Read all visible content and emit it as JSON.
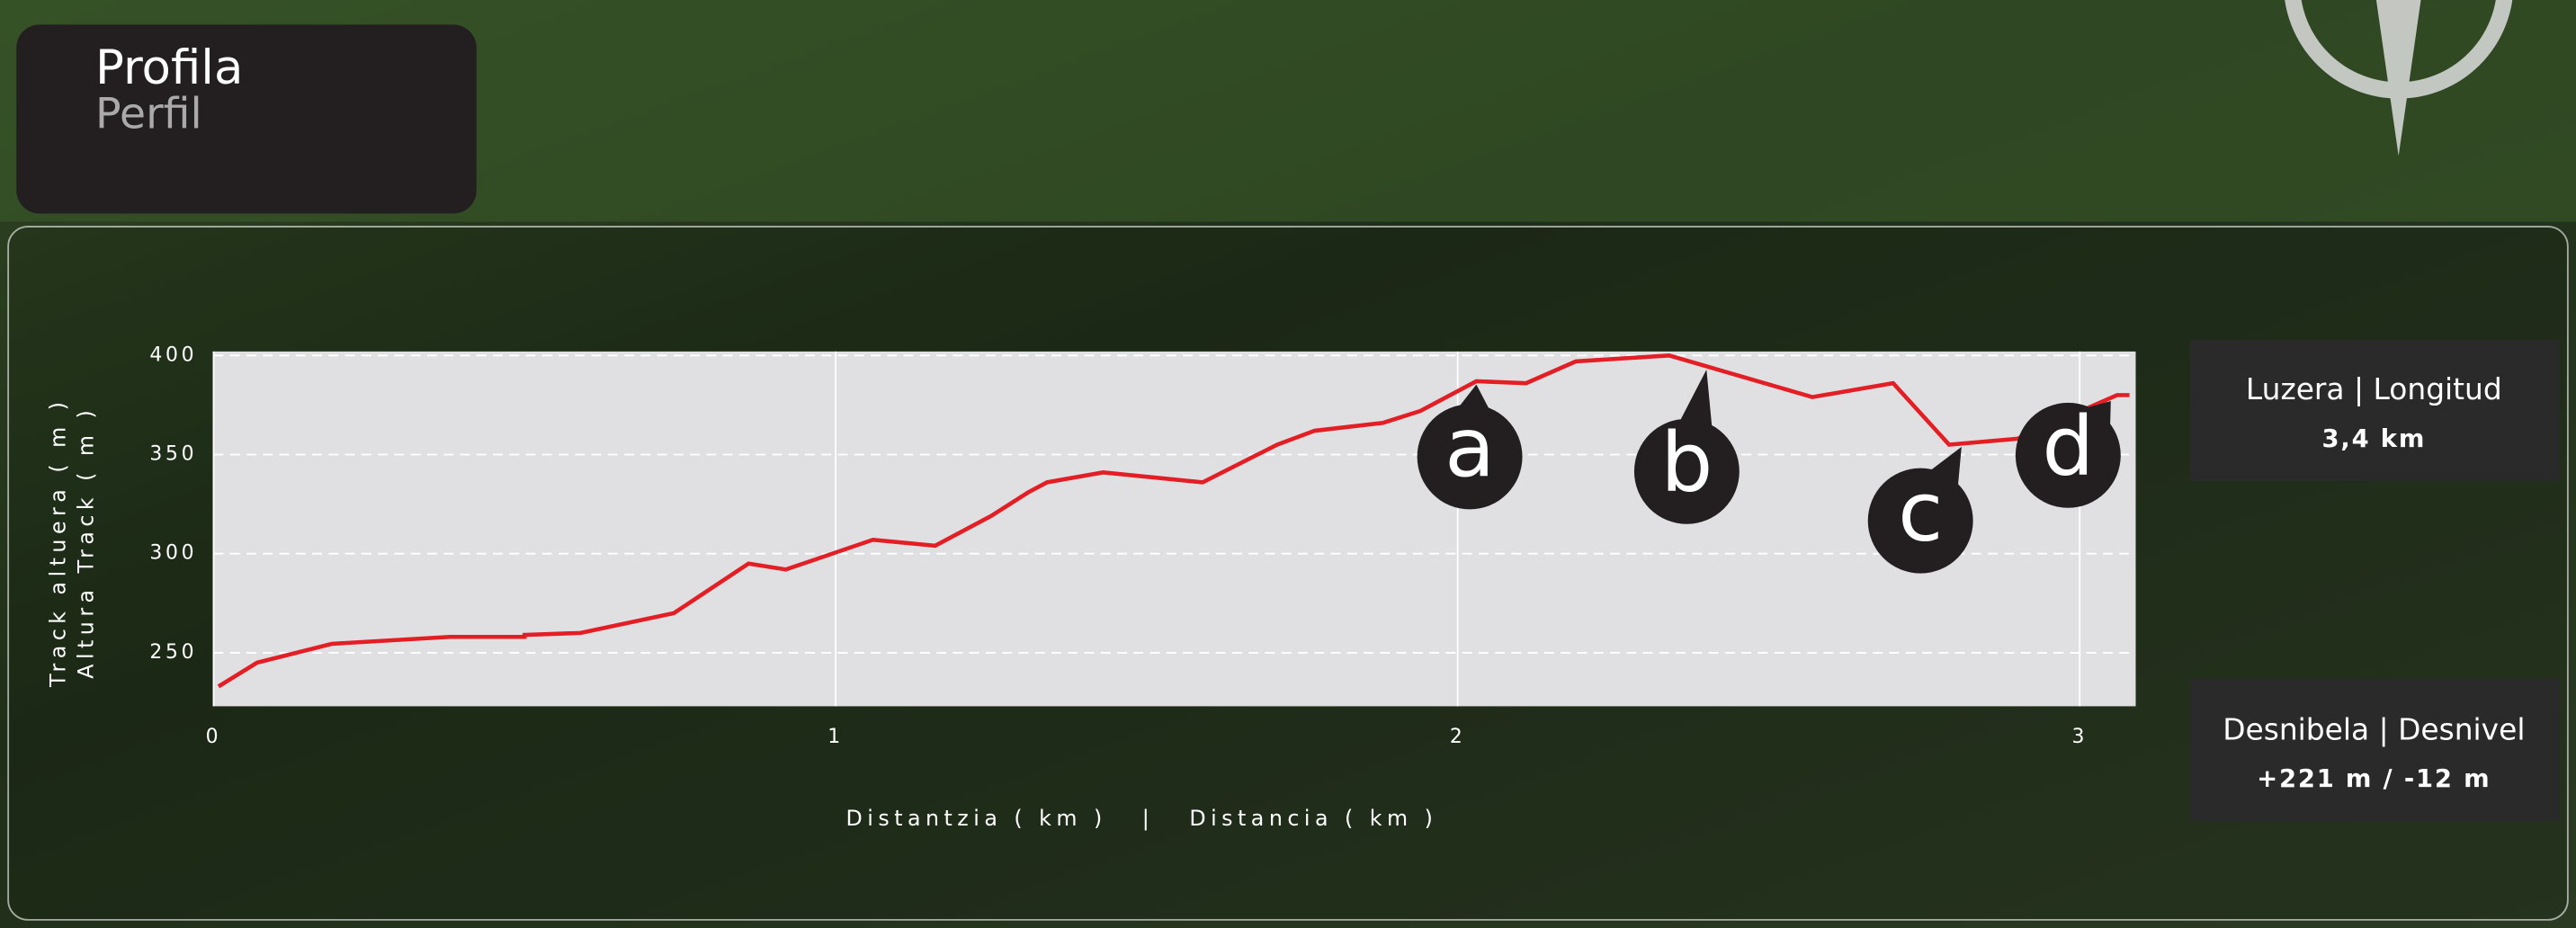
{
  "header": {
    "title": "Profila",
    "subtitle": "Perfil"
  },
  "chart_data": {
    "type": "line",
    "ylabel": [
      "Track altuera ( m )",
      "Altura Track ( m )"
    ],
    "xlabel": "Distantzia ( km )   |   Distancia ( km )",
    "xlim": [
      0,
      3.09
    ],
    "ylim": [
      223,
      402
    ],
    "xticks": [
      0,
      1,
      2,
      3
    ],
    "yticks": [
      250,
      300,
      350,
      400
    ],
    "grid": true,
    "series": [
      {
        "name": "Track",
        "color": "#e31e24",
        "x": [
          0.008,
          0.07,
          0.19,
          0.38,
          0.5,
          0.5,
          0.59,
          0.74,
          0.86,
          0.92,
          1.06,
          1.16,
          1.25,
          1.31,
          1.34,
          1.43,
          1.59,
          1.71,
          1.77,
          1.88,
          1.94,
          2.03,
          2.11,
          2.19,
          2.34,
          2.57,
          2.7,
          2.79,
          2.9,
          3.06,
          3.08
        ],
        "values": [
          233,
          245,
          254.5,
          258,
          258,
          259,
          260,
          270,
          295,
          292,
          307,
          304,
          319,
          331,
          336,
          341,
          336,
          355,
          362,
          366,
          372,
          387,
          386,
          397,
          400,
          379,
          386,
          355,
          358,
          380,
          380
        ]
      }
    ],
    "annotations": [
      {
        "label": "a",
        "x": 2.03
      },
      {
        "label": "b",
        "x": 2.4
      },
      {
        "label": "c",
        "x": 2.81
      },
      {
        "label": "d",
        "x": 3.05
      }
    ]
  },
  "stats": [
    {
      "label": "Luzera | Longitud",
      "value": "3,4 km"
    },
    {
      "label": "Desnibela | Desnivel",
      "value": "+221 m / -12 m"
    }
  ]
}
